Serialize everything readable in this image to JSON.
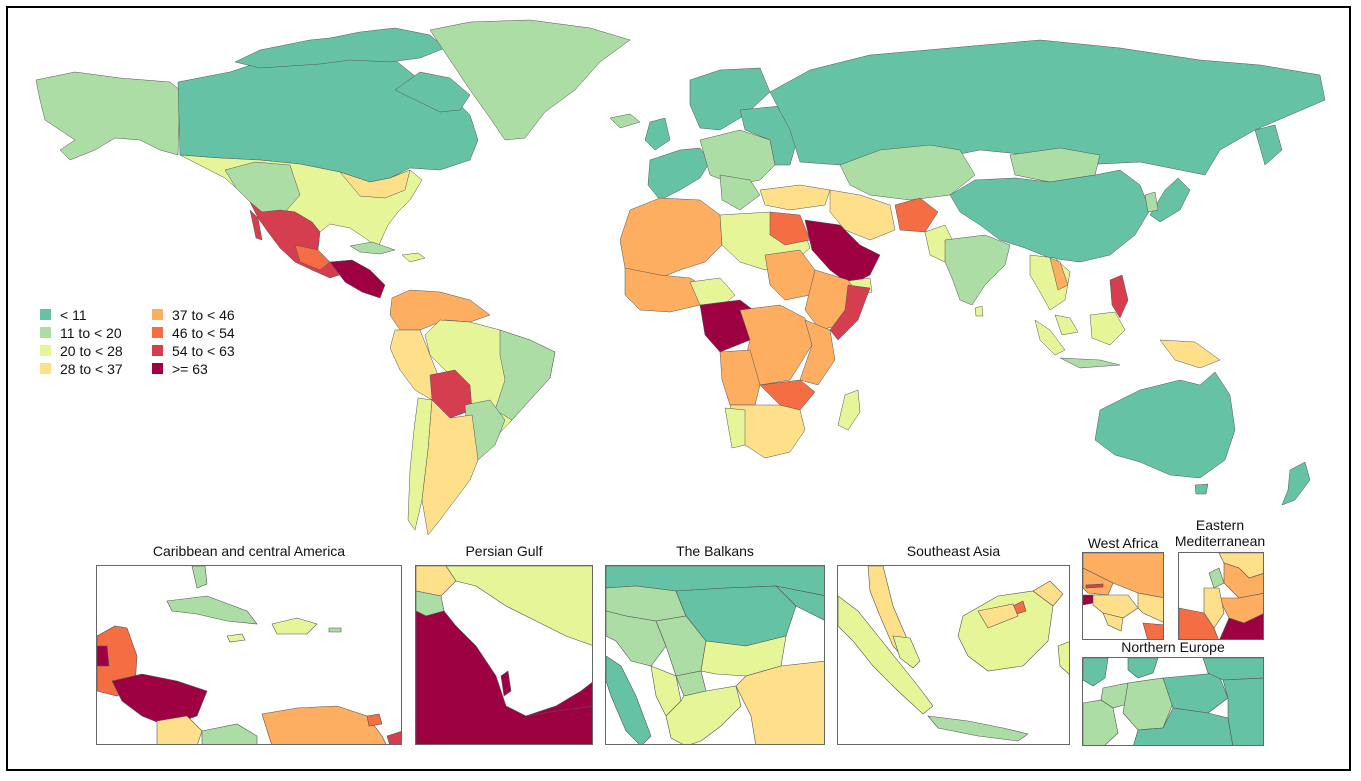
{
  "map": {
    "legend": {
      "items": [
        {
          "label": "< 11",
          "color": "#66c2a5"
        },
        {
          "label": "11 to < 20",
          "color": "#abdda4"
        },
        {
          "label": "20 to < 28",
          "color": "#e6f598"
        },
        {
          "label": "28 to < 37",
          "color": "#fee08b"
        },
        {
          "label": "37 to < 46",
          "color": "#fdae61"
        },
        {
          "label": "46 to < 54",
          "color": "#f46d43"
        },
        {
          "label": "54 to < 63",
          "color": "#d53e4f"
        },
        {
          "label": ">= 63",
          "color": "#9e0142"
        }
      ]
    },
    "insets": [
      {
        "id": "caribbean",
        "title": "Caribbean and central America"
      },
      {
        "id": "persian-gulf",
        "title": "Persian Gulf"
      },
      {
        "id": "balkans",
        "title": "The Balkans"
      },
      {
        "id": "southeast-asia",
        "title": "Southeast Asia"
      },
      {
        "id": "west-africa",
        "title": "West Africa"
      },
      {
        "id": "eastern-mediterranean",
        "title_line1": "Eastern",
        "title_line2": "Mediterranean"
      },
      {
        "id": "northern-europe",
        "title": "Northern Europe"
      }
    ]
  }
}
